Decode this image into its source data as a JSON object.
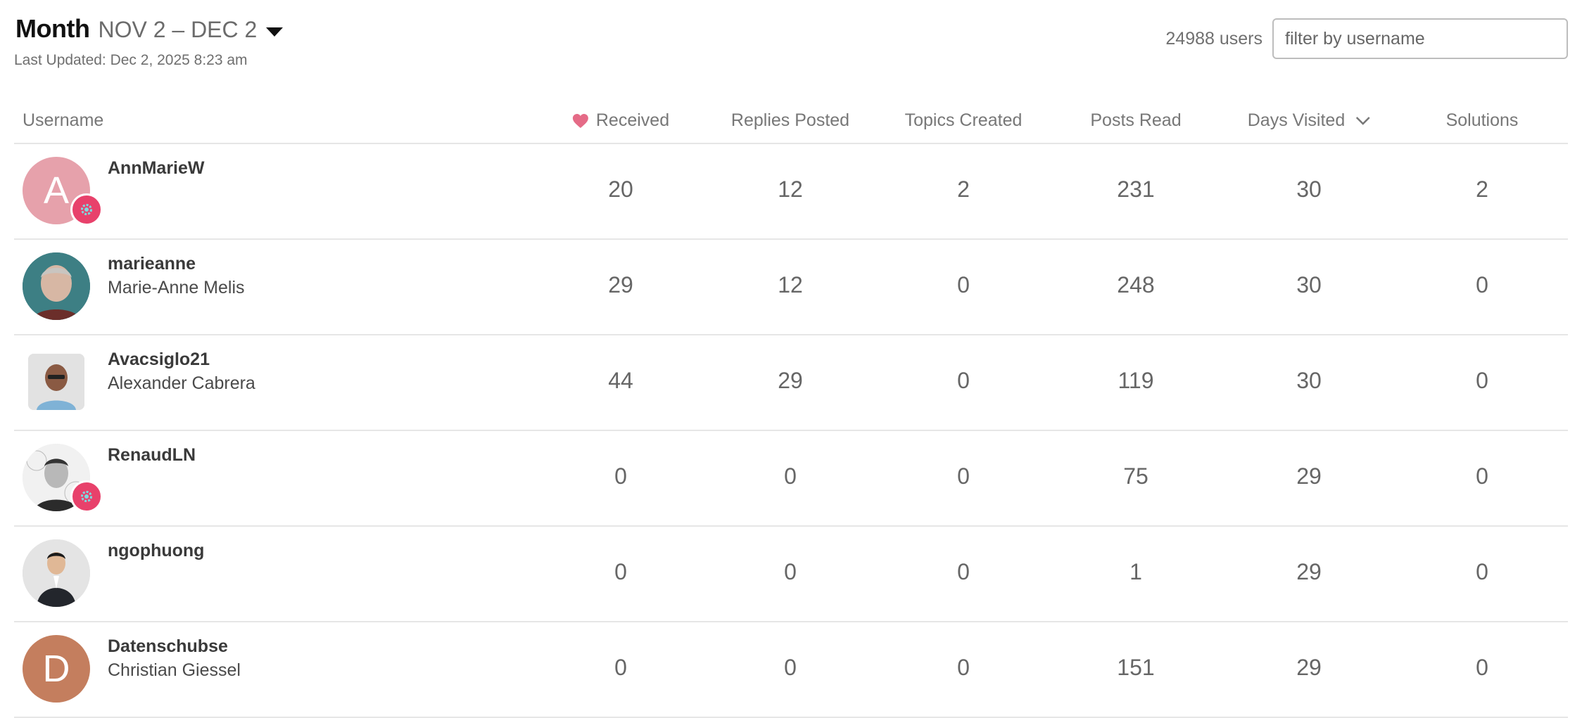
{
  "header": {
    "period_label": "Month",
    "period_range": "NOV 2 – DEC 2",
    "last_updated": "Last Updated: Dec 2, 2025 8:23 am",
    "user_count": "24988 users",
    "filter_placeholder": "filter by username"
  },
  "columns": {
    "username": "Username",
    "received": "Received",
    "replies_posted": "Replies Posted",
    "topics_created": "Topics Created",
    "posts_read": "Posts Read",
    "days_visited": "Days Visited",
    "solutions": "Solutions"
  },
  "colors": {
    "heart": "#e56b87",
    "badge": "#e8416b",
    "badge_icon": "#7ddbe0"
  },
  "rows": [
    {
      "username": "AnnMarieW",
      "name": "",
      "avatar_letter": "A",
      "avatar_color": "#e6a1ab",
      "badge": true,
      "received": "20",
      "replies": "12",
      "topics": "2",
      "posts_read": "231",
      "days_visited": "30",
      "solutions": "2"
    },
    {
      "username": "marieanne",
      "name": "Marie-Anne Melis",
      "avatar_letter": "",
      "avatar_color": "#2f6d73",
      "badge": false,
      "received": "29",
      "replies": "12",
      "topics": "0",
      "posts_read": "248",
      "days_visited": "30",
      "solutions": "0"
    },
    {
      "username": "Avacsiglo21",
      "name": "Alexander Cabrera",
      "avatar_letter": "",
      "avatar_color": "#d9d9d9",
      "badge": false,
      "received": "44",
      "replies": "29",
      "topics": "0",
      "posts_read": "119",
      "days_visited": "30",
      "solutions": "0"
    },
    {
      "username": "RenaudLN",
      "name": "",
      "avatar_letter": "",
      "avatar_color": "#e9e9e9",
      "badge": true,
      "received": "0",
      "replies": "0",
      "topics": "0",
      "posts_read": "75",
      "days_visited": "29",
      "solutions": "0"
    },
    {
      "username": "ngophuong",
      "name": "",
      "avatar_letter": "",
      "avatar_color": "#dcdcdc",
      "badge": false,
      "received": "0",
      "replies": "0",
      "topics": "0",
      "posts_read": "1",
      "days_visited": "29",
      "solutions": "0"
    },
    {
      "username": "Datenschubse",
      "name": "Christian Giessel",
      "avatar_letter": "D",
      "avatar_color": "#c47e5e",
      "badge": false,
      "received": "0",
      "replies": "0",
      "topics": "0",
      "posts_read": "151",
      "days_visited": "29",
      "solutions": "0"
    }
  ]
}
